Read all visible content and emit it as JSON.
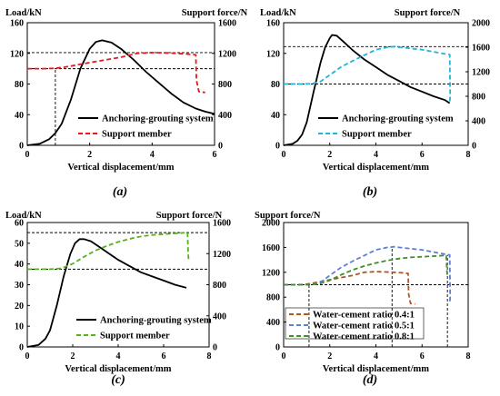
{
  "chart_data": [
    {
      "type": "line",
      "caption": "(a)",
      "ylabel_left": "Load/kN",
      "ylabel_right": "Support force/N",
      "xlabel": "Vertical displacement/mm",
      "xlim": [
        0,
        6
      ],
      "xticks": [
        "0",
        "2",
        "4",
        "6"
      ],
      "ylim_left": [
        0,
        160
      ],
      "yticks_left": [
        "0",
        "40",
        "80",
        "120",
        "160"
      ],
      "ylim_right": [
        0,
        1600
      ],
      "yticks_right": [
        "0",
        "400",
        "800",
        "1200",
        "1600"
      ],
      "colors": {
        "anchor": "#000000",
        "support": "#e8191c"
      },
      "legend": [
        "Anchoring-grouting system",
        "Support member"
      ],
      "series": [
        {
          "name": "Anchoring-grouting system",
          "axis": "left",
          "style": "solid",
          "points": [
            [
              0,
              0
            ],
            [
              0.4,
              2
            ],
            [
              0.7,
              8
            ],
            [
              0.9,
              16
            ],
            [
              1.1,
              28
            ],
            [
              1.4,
              60
            ],
            [
              1.7,
              100
            ],
            [
              2.0,
              126
            ],
            [
              2.2,
              135
            ],
            [
              2.4,
              137
            ],
            [
              2.7,
              134
            ],
            [
              3.0,
              126
            ],
            [
              3.4,
              112
            ],
            [
              3.8,
              96
            ],
            [
              4.2,
              82
            ],
            [
              4.6,
              68
            ],
            [
              5.0,
              56
            ],
            [
              5.4,
              48
            ],
            [
              5.7,
              44
            ],
            [
              6.0,
              41
            ]
          ]
        },
        {
          "name": "Support member",
          "axis": "right",
          "style": "dashed",
          "points": [
            [
              0,
              1000
            ],
            [
              0.5,
              1000
            ],
            [
              0.9,
              1005
            ],
            [
              1.2,
              1020
            ],
            [
              2.0,
              1080
            ],
            [
              3.0,
              1150
            ],
            [
              3.5,
              1200
            ],
            [
              4.0,
              1210
            ],
            [
              4.5,
              1205
            ],
            [
              5.0,
              1195
            ],
            [
              5.3,
              1185
            ],
            [
              5.4,
              1180
            ],
            [
              5.42,
              850
            ],
            [
              5.5,
              700
            ],
            [
              5.7,
              690
            ]
          ]
        }
      ],
      "ref_lines": {
        "h_right": [
          1000,
          1210
        ],
        "v_x": [
          0.9
        ]
      }
    },
    {
      "type": "line",
      "caption": "(b)",
      "ylabel_left": "Load/kN",
      "ylabel_right": "Support force/N",
      "xlabel": "Vertical displacement/mm",
      "xlim": [
        0,
        8
      ],
      "xticks": [
        "0",
        "2",
        "4",
        "6",
        "8"
      ],
      "ylim_left": [
        0,
        160
      ],
      "yticks_left": [
        "0",
        "40",
        "80",
        "120",
        "160"
      ],
      "ylim_right": [
        0,
        2000
      ],
      "yticks_right": [
        "0",
        "400",
        "800",
        "1200",
        "1600",
        "2000"
      ],
      "colors": {
        "anchor": "#000000",
        "support": "#1fb4d8"
      },
      "legend": [
        "Anchoring-grouting system",
        "Support member"
      ],
      "series": [
        {
          "name": "Anchoring-grouting system",
          "axis": "left",
          "style": "solid",
          "points": [
            [
              0,
              0
            ],
            [
              0.4,
              2
            ],
            [
              0.6,
              6
            ],
            [
              0.8,
              14
            ],
            [
              1.0,
              30
            ],
            [
              1.3,
              70
            ],
            [
              1.6,
              108
            ],
            [
              1.8,
              128
            ],
            [
              2.0,
              140
            ],
            [
              2.1,
              144
            ],
            [
              2.3,
              143
            ],
            [
              2.6,
              135
            ],
            [
              3.0,
              124
            ],
            [
              3.5,
              112
            ],
            [
              4.0,
              102
            ],
            [
              4.5,
              92
            ],
            [
              5.0,
              84
            ],
            [
              5.5,
              76
            ],
            [
              6.0,
              70
            ],
            [
              6.5,
              64
            ],
            [
              7.0,
              59
            ],
            [
              7.2,
              55
            ]
          ]
        },
        {
          "name": "Support member",
          "axis": "right",
          "style": "dashed",
          "points": [
            [
              0,
              1000
            ],
            [
              0.8,
              1000
            ],
            [
              1.2,
              1005
            ],
            [
              1.6,
              1040
            ],
            [
              2.0,
              1150
            ],
            [
              2.5,
              1280
            ],
            [
              3.0,
              1380
            ],
            [
              3.5,
              1470
            ],
            [
              4.0,
              1560
            ],
            [
              4.5,
              1600
            ],
            [
              4.8,
              1610
            ],
            [
              5.0,
              1600
            ],
            [
              6.0,
              1560
            ],
            [
              7.0,
              1490
            ],
            [
              7.2,
              1480
            ],
            [
              7.22,
              800
            ],
            [
              7.2,
              700
            ]
          ]
        }
      ],
      "ref_lines": {
        "h_left": [
          80
        ],
        "h_right": [
          1610
        ]
      }
    },
    {
      "type": "line",
      "caption": "(c)",
      "ylabel_left": "Load/kN",
      "ylabel_right": "Support force/N",
      "xlabel": "Vertical displacement/mm",
      "xlim": [
        0,
        8
      ],
      "xticks": [
        "0",
        "2",
        "4",
        "6",
        "8"
      ],
      "ylim_left": [
        0,
        60
      ],
      "yticks_left": [
        "0",
        "10",
        "20",
        "30",
        "40",
        "50",
        "60"
      ],
      "ylim_right": [
        0,
        1600
      ],
      "yticks_right": [
        "0",
        "400",
        "800",
        "1200",
        "1600"
      ],
      "colors": {
        "anchor": "#000000",
        "support": "#59b01d"
      },
      "legend": [
        "Anchoring-grouting system",
        "Support member"
      ],
      "series": [
        {
          "name": "Anchoring-grouting system",
          "axis": "left",
          "style": "solid",
          "points": [
            [
              0,
              0
            ],
            [
              0.5,
              1
            ],
            [
              0.8,
              4
            ],
            [
              1.0,
              8
            ],
            [
              1.3,
              20
            ],
            [
              1.6,
              34
            ],
            [
              1.9,
              45
            ],
            [
              2.1,
              50
            ],
            [
              2.3,
              52
            ],
            [
              2.5,
              52
            ],
            [
              2.8,
              51
            ],
            [
              3.2,
              48
            ],
            [
              3.6,
              45
            ],
            [
              4.0,
              42
            ],
            [
              4.5,
              39
            ],
            [
              5.0,
              36
            ],
            [
              5.5,
              34
            ],
            [
              6.0,
              32
            ],
            [
              6.5,
              30
            ],
            [
              7.0,
              28.5
            ]
          ]
        },
        {
          "name": "Support member",
          "axis": "right",
          "style": "dashed",
          "points": [
            [
              0,
              1000
            ],
            [
              1.0,
              1000
            ],
            [
              1.5,
              1010
            ],
            [
              2.0,
              1070
            ],
            [
              2.5,
              1160
            ],
            [
              3.0,
              1240
            ],
            [
              3.5,
              1300
            ],
            [
              4.0,
              1350
            ],
            [
              4.5,
              1390
            ],
            [
              5.0,
              1420
            ],
            [
              5.5,
              1440
            ],
            [
              6.0,
              1450
            ],
            [
              6.5,
              1460
            ],
            [
              7.0,
              1470
            ],
            [
              7.05,
              1470
            ],
            [
              7.08,
              1200
            ],
            [
              7.1,
              1120
            ]
          ]
        }
      ],
      "ref_lines": {
        "h_left": [
          37.5
        ],
        "h_right": [
          1470
        ]
      }
    },
    {
      "type": "line",
      "caption": "(d)",
      "ylabel_left": "Support force/N",
      "xlabel": "Vertical displacement/mm",
      "xlim": [
        0,
        8
      ],
      "xticks": [
        "0",
        "2",
        "4",
        "6",
        "8"
      ],
      "ylim_left": [
        0,
        2000
      ],
      "yticks_left": [
        "0",
        "400",
        "800",
        "1200",
        "1600",
        "2000"
      ],
      "colors": {
        "s1": "#b5541e",
        "s2": "#5b7fd6",
        "s3": "#3f8f2b"
      },
      "legend": [
        "Water-cement ratio 0.4:1",
        "Water-cement ratio 0.5:1",
        "Water-cement ratio 0.8:1"
      ],
      "series": [
        {
          "name": "Water-cement ratio 0.4:1",
          "axis": "left",
          "style": "dashed",
          "points": [
            [
              0,
              1000
            ],
            [
              0.5,
              1000
            ],
            [
              0.9,
              1005
            ],
            [
              1.2,
              1020
            ],
            [
              2.0,
              1080
            ],
            [
              3.0,
              1150
            ],
            [
              3.5,
              1200
            ],
            [
              4.0,
              1210
            ],
            [
              4.5,
              1205
            ],
            [
              5.0,
              1195
            ],
            [
              5.3,
              1185
            ],
            [
              5.4,
              1180
            ],
            [
              5.42,
              850
            ],
            [
              5.5,
              700
            ],
            [
              5.7,
              690
            ]
          ]
        },
        {
          "name": "Water-cement ratio 0.5:1",
          "axis": "left",
          "style": "dashed",
          "points": [
            [
              0,
              1000
            ],
            [
              0.8,
              1000
            ],
            [
              1.2,
              1005
            ],
            [
              1.6,
              1040
            ],
            [
              2.0,
              1150
            ],
            [
              2.5,
              1280
            ],
            [
              3.0,
              1380
            ],
            [
              3.5,
              1470
            ],
            [
              4.0,
              1560
            ],
            [
              4.5,
              1600
            ],
            [
              4.8,
              1610
            ],
            [
              5.0,
              1600
            ],
            [
              6.0,
              1560
            ],
            [
              7.0,
              1490
            ],
            [
              7.2,
              1480
            ],
            [
              7.22,
              800
            ],
            [
              7.2,
              700
            ]
          ]
        },
        {
          "name": "Water-cement ratio 0.8:1",
          "axis": "left",
          "style": "dashed",
          "points": [
            [
              0,
              1000
            ],
            [
              1.0,
              1000
            ],
            [
              1.5,
              1010
            ],
            [
              2.0,
              1070
            ],
            [
              2.5,
              1160
            ],
            [
              3.0,
              1240
            ],
            [
              3.5,
              1300
            ],
            [
              4.0,
              1350
            ],
            [
              4.5,
              1390
            ],
            [
              5.0,
              1420
            ],
            [
              5.5,
              1440
            ],
            [
              6.0,
              1450
            ],
            [
              6.5,
              1460
            ],
            [
              7.0,
              1470
            ],
            [
              7.05,
              1470
            ],
            [
              7.08,
              1200
            ],
            [
              7.1,
              1120
            ]
          ]
        }
      ],
      "ref_lines": {
        "h_left": [
          1000
        ],
        "v_x": [
          1.1,
          4.7,
          7.1
        ]
      }
    }
  ]
}
